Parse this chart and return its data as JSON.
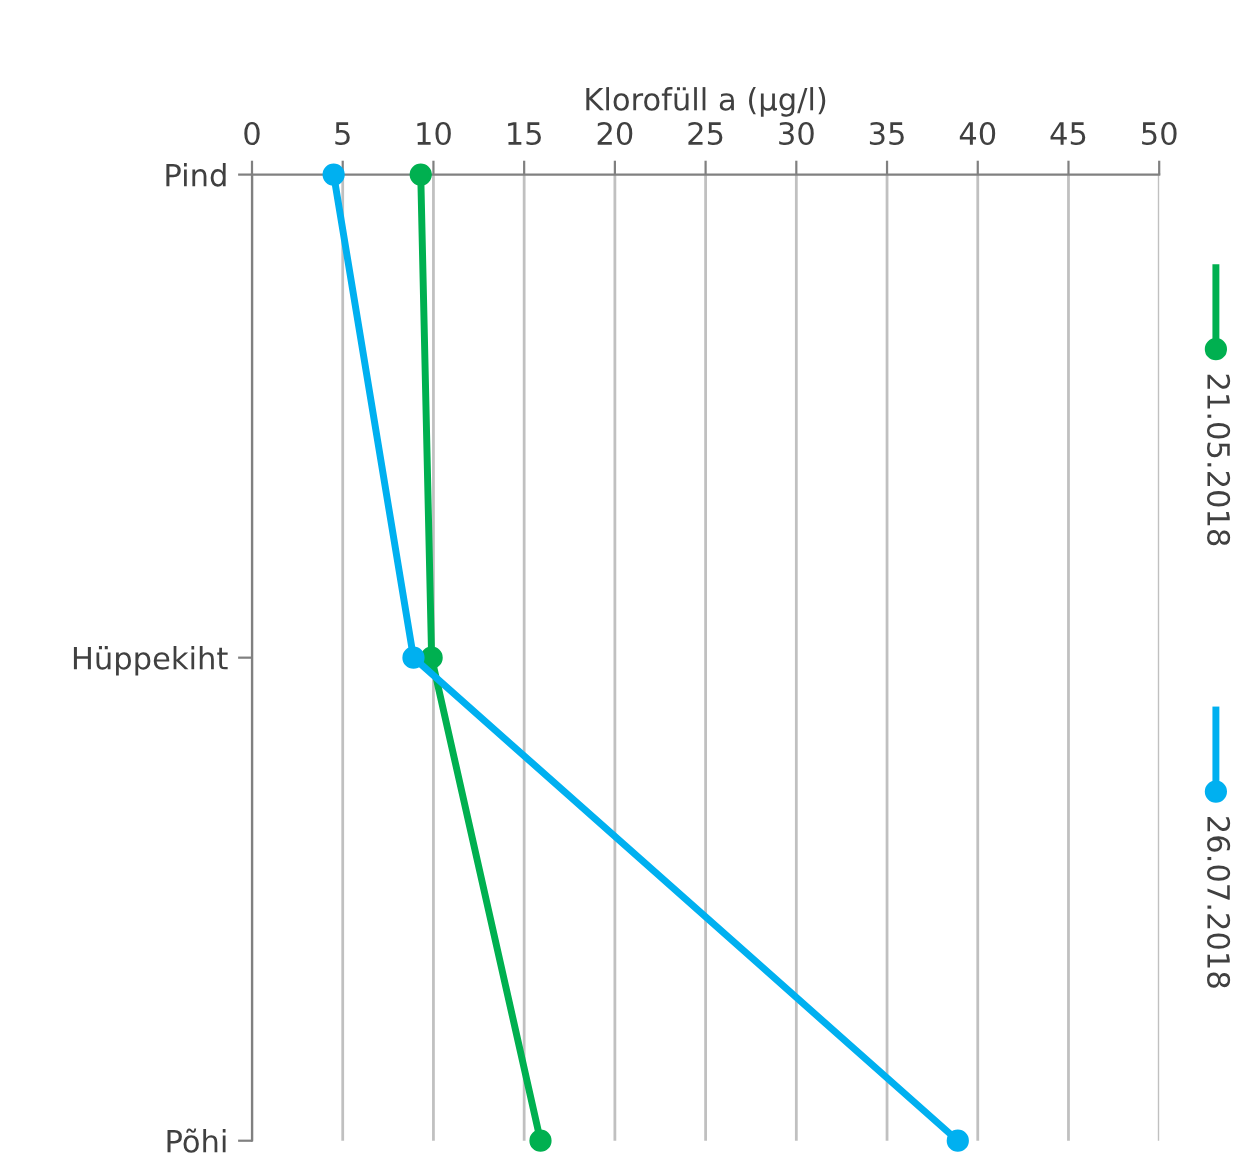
{
  "chart_data": {
    "type": "line",
    "orientation": "horizontal",
    "xlabel": "Klorofüll a (µg/l)",
    "categories": [
      "Pind",
      "Hüppekiht",
      "Põhi"
    ],
    "series": [
      {
        "name": "21.05.2018",
        "color": "#00b050",
        "values": [
          9.3,
          9.9,
          15.9
        ]
      },
      {
        "name": "26.07.2018",
        "color": "#00b0f0",
        "values": [
          4.5,
          8.9,
          38.9
        ]
      }
    ],
    "xlim": [
      0,
      50
    ],
    "xticks": [
      0,
      5,
      10,
      15,
      20,
      25,
      30,
      35,
      40,
      45,
      50
    ],
    "grid": "x",
    "legend": "right",
    "marker": "circle",
    "line_style": "solid"
  }
}
